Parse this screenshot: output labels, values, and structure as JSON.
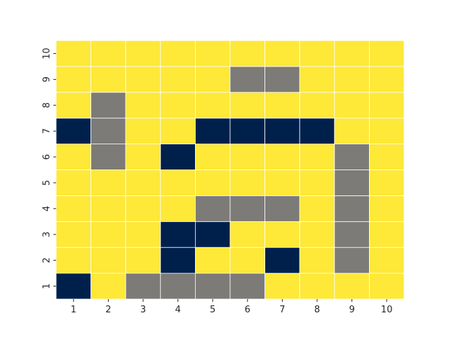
{
  "chart_data": {
    "type": "heatmap",
    "title": "",
    "xlabel": "",
    "ylabel": "",
    "x": [
      1,
      2,
      3,
      4,
      5,
      6,
      7,
      8,
      9,
      10
    ],
    "y": [
      1,
      2,
      3,
      4,
      5,
      6,
      7,
      8,
      9,
      10
    ],
    "x_tick_labels": [
      "1",
      "2",
      "3",
      "4",
      "5",
      "6",
      "7",
      "8",
      "9",
      "10"
    ],
    "y_tick_labels": [
      "1",
      "2",
      "3",
      "4",
      "5",
      "6",
      "7",
      "8",
      "9",
      "10"
    ],
    "value_legend": {
      "0": "navy",
      "1": "gray",
      "2": "yellow"
    },
    "colors": {
      "0": "#00204c",
      "1": "#7d7b77",
      "2": "#fee838"
    },
    "grid_line_color": "#ffffff",
    "colorbar": false,
    "rows_bottom_to_top": [
      [
        0,
        2,
        1,
        1,
        1,
        1,
        2,
        2,
        2,
        2
      ],
      [
        2,
        2,
        2,
        0,
        2,
        2,
        0,
        2,
        1,
        2
      ],
      [
        2,
        2,
        2,
        0,
        0,
        2,
        2,
        2,
        1,
        2
      ],
      [
        2,
        2,
        2,
        2,
        1,
        1,
        1,
        2,
        1,
        2
      ],
      [
        2,
        2,
        2,
        2,
        2,
        2,
        2,
        2,
        1,
        2
      ],
      [
        2,
        1,
        2,
        0,
        2,
        2,
        2,
        2,
        1,
        2
      ],
      [
        0,
        1,
        2,
        2,
        0,
        0,
        0,
        0,
        2,
        2
      ],
      [
        2,
        1,
        2,
        2,
        2,
        2,
        2,
        2,
        2,
        2
      ],
      [
        2,
        2,
        2,
        2,
        2,
        1,
        1,
        2,
        2,
        2
      ],
      [
        2,
        2,
        2,
        2,
        2,
        2,
        2,
        2,
        2,
        2
      ]
    ]
  }
}
